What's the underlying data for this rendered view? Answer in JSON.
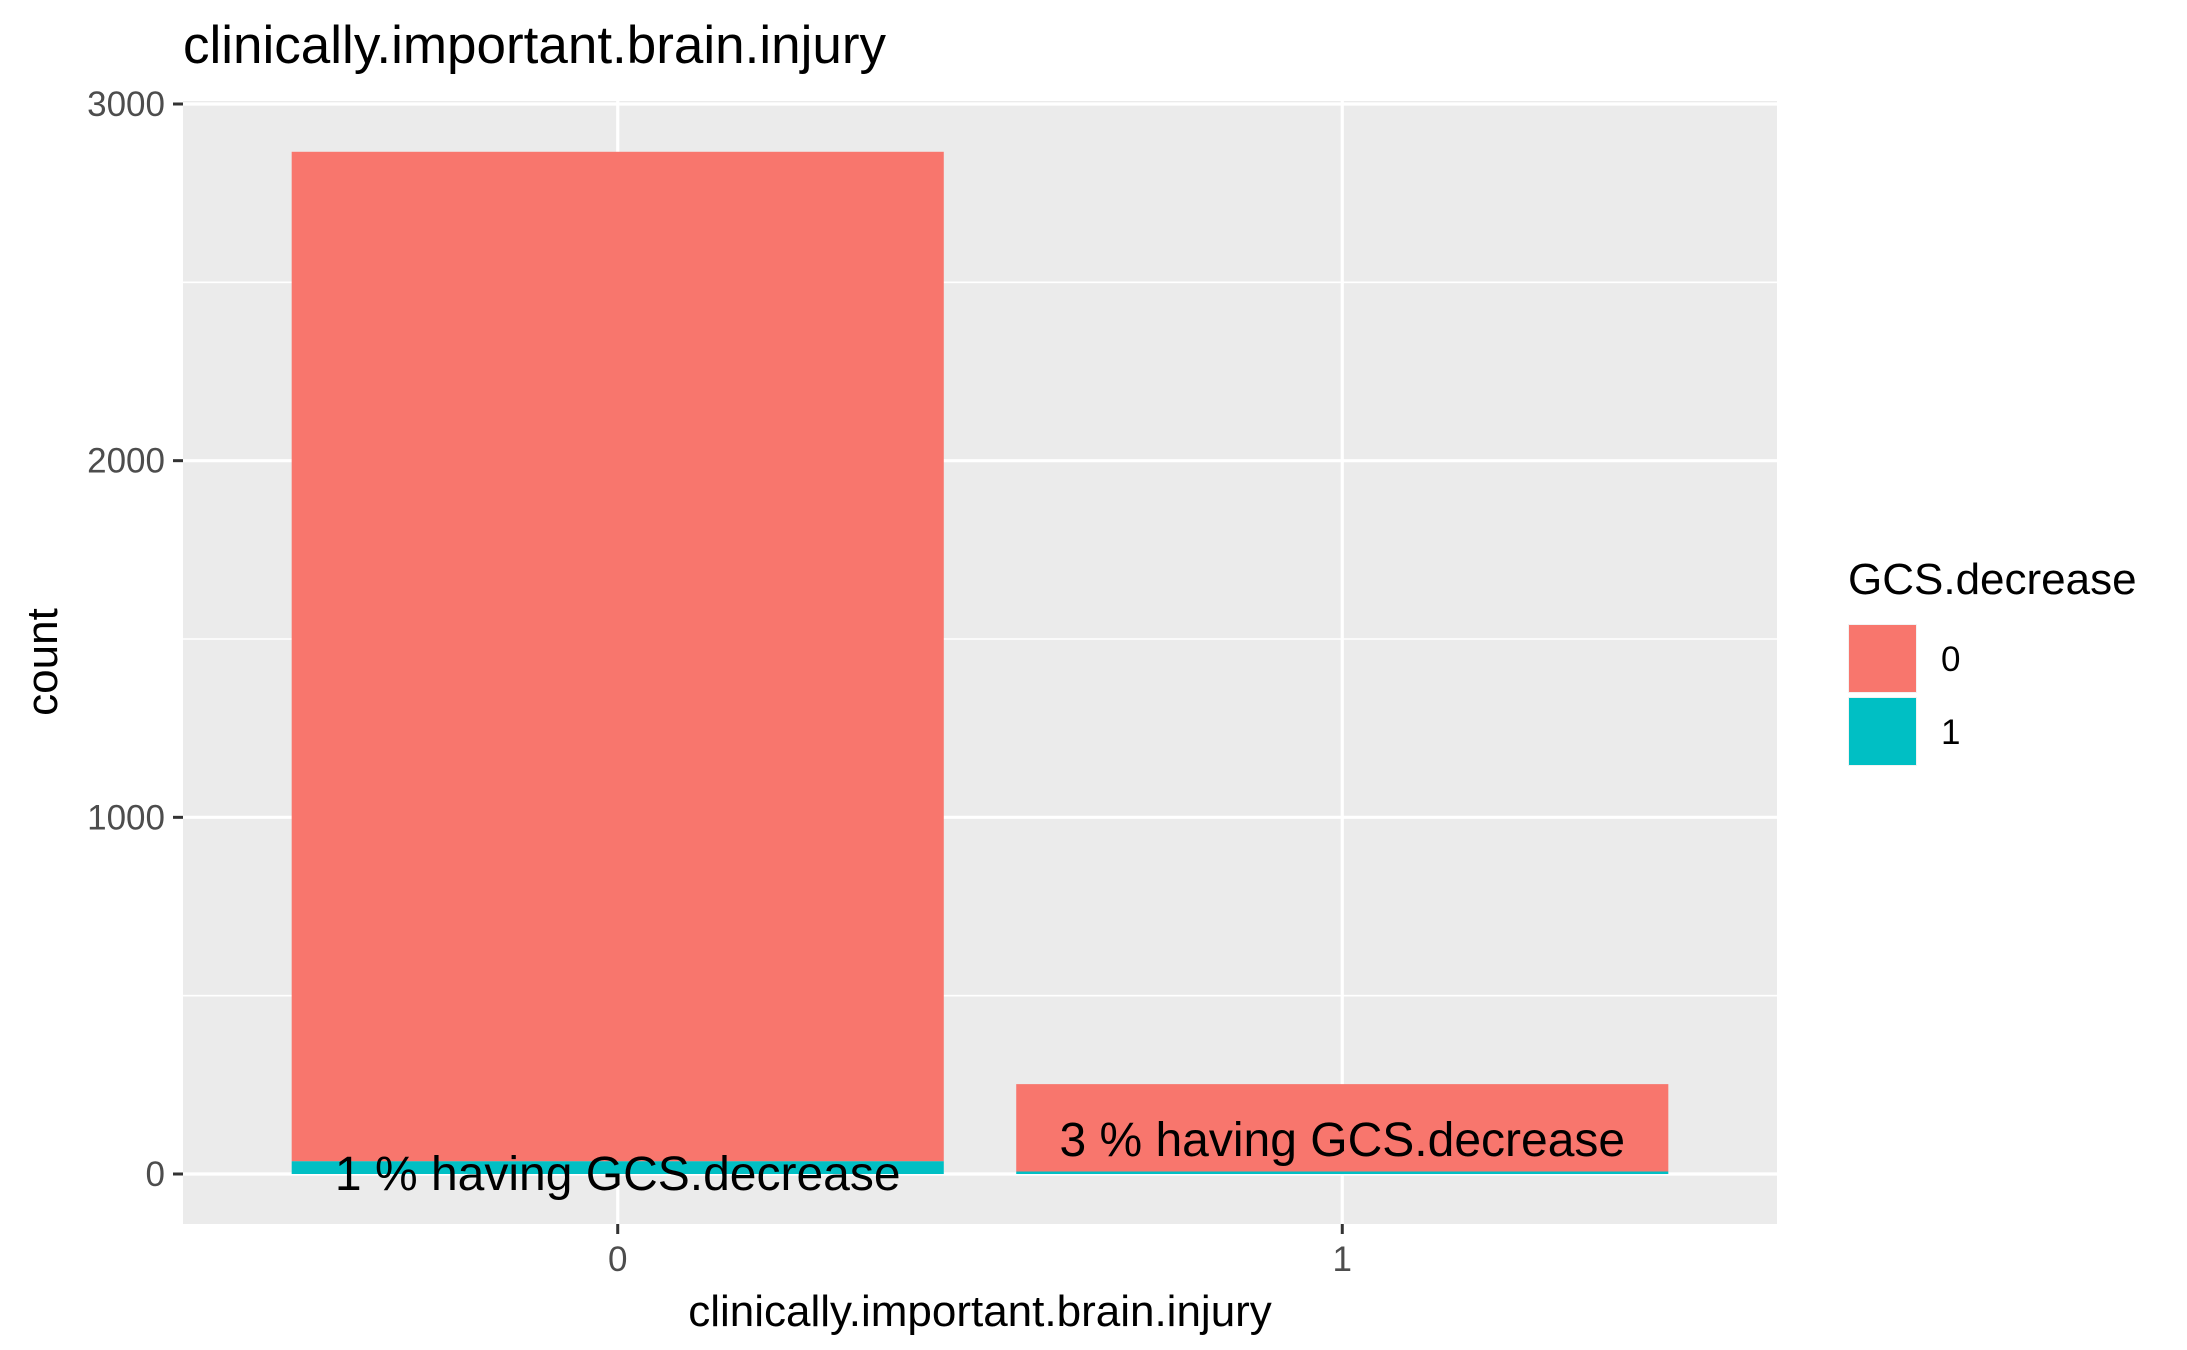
{
  "chart_data": {
    "type": "bar",
    "stacked": true,
    "title": "clinically.important.brain.injury",
    "xlabel": "clinically.important.brain.injury",
    "ylabel": "count",
    "categories": [
      "0",
      "1"
    ],
    "series": [
      {
        "name": "0",
        "values": [
          2830,
          245
        ],
        "color": "#F8766D"
      },
      {
        "name": "1",
        "values": [
          36,
          7
        ],
        "color": "#00BFC4"
      }
    ],
    "ylim": [
      -140,
      3000
    ],
    "yticks": [
      0,
      1000,
      2000,
      3000
    ],
    "ytick_labels": [
      "0",
      "1000",
      "2000",
      "3000"
    ],
    "grid": true,
    "panel_background": "#EBEBEB",
    "legend": {
      "title": "GCS.decrease",
      "position": "right",
      "entries": [
        "0",
        "1"
      ]
    },
    "annotations": [
      {
        "category": "0",
        "text": "1 % having GCS.decrease",
        "y": 0
      },
      {
        "category": "1",
        "text": "3 % having GCS.decrease",
        "y": 95
      }
    ]
  }
}
